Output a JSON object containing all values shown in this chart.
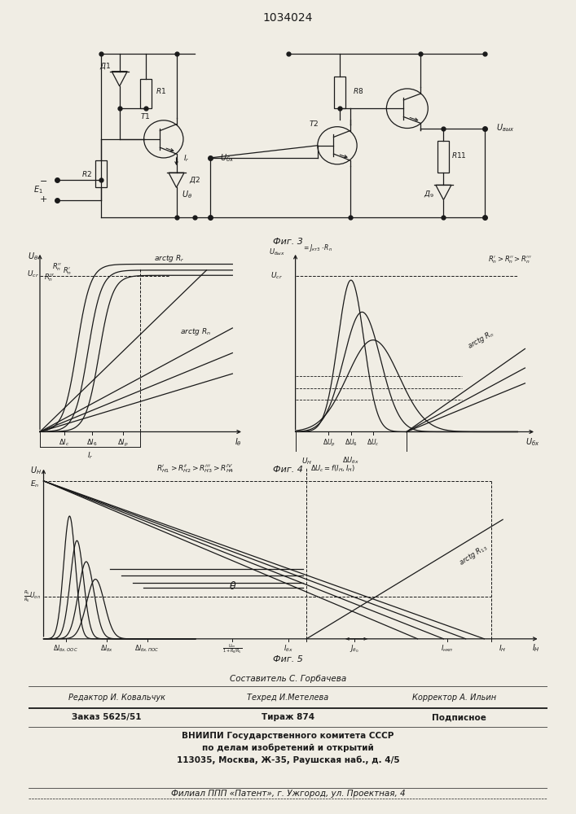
{
  "title": "1034024",
  "bg_color": "#f0ede4",
  "line_color": "#1a1a1a",
  "fig3_caption": "Фиг. 3",
  "fig4_caption": "Фиг. 4",
  "fig5_caption": "Фиг. 5"
}
